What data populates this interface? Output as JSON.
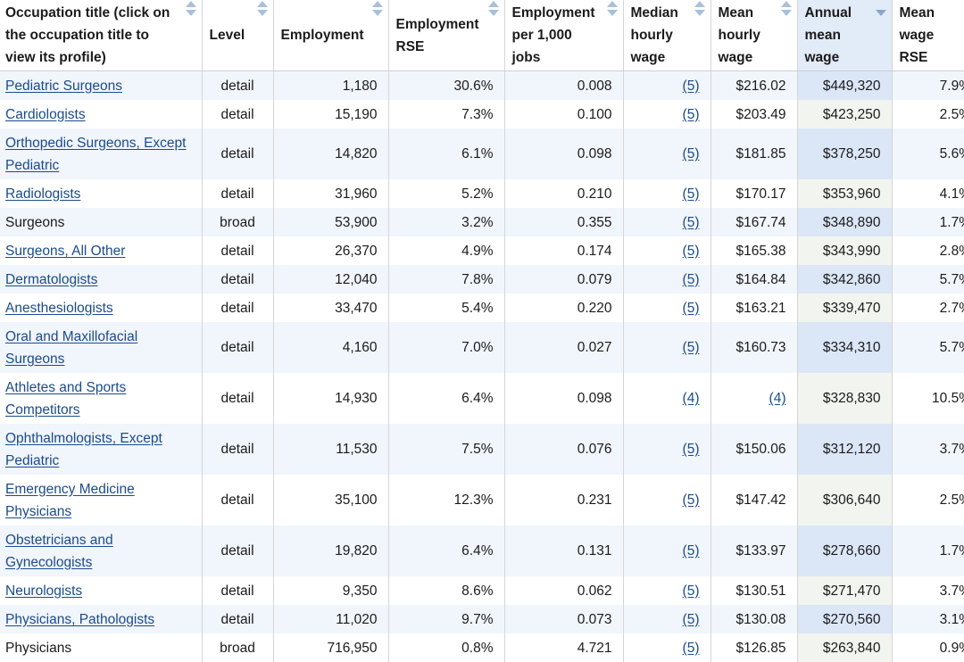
{
  "columns": [
    {
      "key": "title",
      "label": "Occupation title (click on the occupation title to view its profile)",
      "sort": "both"
    },
    {
      "key": "level",
      "label": "Level",
      "sort": "both"
    },
    {
      "key": "employment",
      "label": "Employment",
      "sort": "both"
    },
    {
      "key": "emp_rse",
      "label": "Employment RSE",
      "sort": "both"
    },
    {
      "key": "emp_per_1000",
      "label": "Employment per 1,000 jobs",
      "sort": "both"
    },
    {
      "key": "median_hourly",
      "label": "Median hourly wage",
      "sort": "both"
    },
    {
      "key": "mean_hourly",
      "label": "Mean hourly wage",
      "sort": "both"
    },
    {
      "key": "annual_mean",
      "label": "Annual mean wage",
      "sort": "desc"
    },
    {
      "key": "mean_rse",
      "label": "Mean wage RSE",
      "sort": "both"
    }
  ],
  "rows": [
    {
      "title": "Pediatric Surgeons",
      "link": true,
      "level": "detail",
      "employment": "1,180",
      "emp_rse": "30.6%",
      "emp_per_1000": "0.008",
      "median_hourly": "(5)",
      "mean_hourly": "$216.02",
      "mean_hourly_link": false,
      "annual_mean": "$449,320",
      "mean_rse": "7.9%",
      "tall": false
    },
    {
      "title": "Cardiologists",
      "link": true,
      "level": "detail",
      "employment": "15,190",
      "emp_rse": "7.3%",
      "emp_per_1000": "0.100",
      "median_hourly": "(5)",
      "mean_hourly": "$203.49",
      "mean_hourly_link": false,
      "annual_mean": "$423,250",
      "mean_rse": "2.5%",
      "tall": false
    },
    {
      "title": "Orthopedic Surgeons, Except Pediatric",
      "link": true,
      "level": "detail",
      "employment": "14,820",
      "emp_rse": "6.1%",
      "emp_per_1000": "0.098",
      "median_hourly": "(5)",
      "mean_hourly": "$181.85",
      "mean_hourly_link": false,
      "annual_mean": "$378,250",
      "mean_rse": "5.6%",
      "tall": true
    },
    {
      "title": "Radiologists",
      "link": true,
      "level": "detail",
      "employment": "31,960",
      "emp_rse": "5.2%",
      "emp_per_1000": "0.210",
      "median_hourly": "(5)",
      "mean_hourly": "$170.17",
      "mean_hourly_link": false,
      "annual_mean": "$353,960",
      "mean_rse": "4.1%",
      "tall": false
    },
    {
      "title": "Surgeons",
      "link": false,
      "level": "broad",
      "employment": "53,900",
      "emp_rse": "3.2%",
      "emp_per_1000": "0.355",
      "median_hourly": "(5)",
      "mean_hourly": "$167.74",
      "mean_hourly_link": false,
      "annual_mean": "$348,890",
      "mean_rse": "1.7%",
      "tall": false
    },
    {
      "title": "Surgeons, All Other",
      "link": true,
      "level": "detail",
      "employment": "26,370",
      "emp_rse": "4.9%",
      "emp_per_1000": "0.174",
      "median_hourly": "(5)",
      "mean_hourly": "$165.38",
      "mean_hourly_link": false,
      "annual_mean": "$343,990",
      "mean_rse": "2.8%",
      "tall": false
    },
    {
      "title": "Dermatologists",
      "link": true,
      "level": "detail",
      "employment": "12,040",
      "emp_rse": "7.8%",
      "emp_per_1000": "0.079",
      "median_hourly": "(5)",
      "mean_hourly": "$164.84",
      "mean_hourly_link": false,
      "annual_mean": "$342,860",
      "mean_rse": "5.7%",
      "tall": false
    },
    {
      "title": "Anesthesiologists",
      "link": true,
      "level": "detail",
      "employment": "33,470",
      "emp_rse": "5.4%",
      "emp_per_1000": "0.220",
      "median_hourly": "(5)",
      "mean_hourly": "$163.21",
      "mean_hourly_link": false,
      "annual_mean": "$339,470",
      "mean_rse": "2.7%",
      "tall": false
    },
    {
      "title": "Oral and Maxillofacial Surgeons",
      "link": true,
      "level": "detail",
      "employment": "4,160",
      "emp_rse": "7.0%",
      "emp_per_1000": "0.027",
      "median_hourly": "(5)",
      "mean_hourly": "$160.73",
      "mean_hourly_link": false,
      "annual_mean": "$334,310",
      "mean_rse": "5.7%",
      "tall": true
    },
    {
      "title": "Athletes and Sports Competitors",
      "link": true,
      "level": "detail",
      "employment": "14,930",
      "emp_rse": "6.4%",
      "emp_per_1000": "0.098",
      "median_hourly": "(4)",
      "mean_hourly": "(4)",
      "mean_hourly_link": true,
      "annual_mean": "$328,830",
      "mean_rse": "10.5%",
      "tall": true
    },
    {
      "title": "Ophthalmologists, Except Pediatric",
      "link": true,
      "level": "detail",
      "employment": "11,530",
      "emp_rse": "7.5%",
      "emp_per_1000": "0.076",
      "median_hourly": "(5)",
      "mean_hourly": "$150.06",
      "mean_hourly_link": false,
      "annual_mean": "$312,120",
      "mean_rse": "3.7%",
      "tall": true
    },
    {
      "title": "Emergency Medicine Physicians",
      "link": true,
      "level": "detail",
      "employment": "35,100",
      "emp_rse": "12.3%",
      "emp_per_1000": "0.231",
      "median_hourly": "(5)",
      "mean_hourly": "$147.42",
      "mean_hourly_link": false,
      "annual_mean": "$306,640",
      "mean_rse": "2.5%",
      "tall": true
    },
    {
      "title": "Obstetricians and Gynecologists",
      "link": true,
      "level": "detail",
      "employment": "19,820",
      "emp_rse": "6.4%",
      "emp_per_1000": "0.131",
      "median_hourly": "(5)",
      "mean_hourly": "$133.97",
      "mean_hourly_link": false,
      "annual_mean": "$278,660",
      "mean_rse": "1.7%",
      "tall": true
    },
    {
      "title": "Neurologists",
      "link": true,
      "level": "detail",
      "employment": "9,350",
      "emp_rse": "8.6%",
      "emp_per_1000": "0.062",
      "median_hourly": "(5)",
      "mean_hourly": "$130.51",
      "mean_hourly_link": false,
      "annual_mean": "$271,470",
      "mean_rse": "3.7%",
      "tall": false
    },
    {
      "title": "Physicians, Pathologists",
      "link": true,
      "level": "detail",
      "employment": "11,020",
      "emp_rse": "9.7%",
      "emp_per_1000": "0.073",
      "median_hourly": "(5)",
      "mean_hourly": "$130.08",
      "mean_hourly_link": false,
      "annual_mean": "$270,560",
      "mean_rse": "3.1%",
      "tall": false
    },
    {
      "title": "Physicians",
      "link": false,
      "level": "broad",
      "employment": "716,950",
      "emp_rse": "0.8%",
      "emp_per_1000": "4.721",
      "median_hourly": "(5)",
      "mean_hourly": "$126.85",
      "mean_hourly_link": false,
      "annual_mean": "$263,840",
      "mean_rse": "0.9%",
      "tall": false
    }
  ],
  "colors": {
    "link": "#1a4b8c",
    "row_alt": "#f1f5fc",
    "sorted_col": "#dbe6f7",
    "sort_arrow": "#a9bfdc"
  },
  "icons": {
    "sort": "sort-arrows-icon",
    "sort_desc": "sort-descending-icon"
  }
}
